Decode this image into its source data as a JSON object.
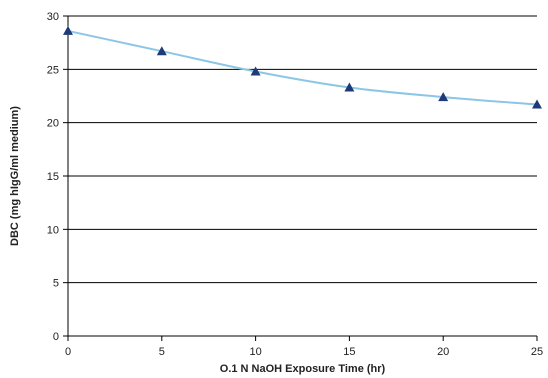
{
  "chart_data": {
    "type": "line",
    "title": "",
    "xlabel": "O.1 N NaOH Exposure Time (hr)",
    "ylabel": "DBC (mg hIgG/ml medium)",
    "x": [
      0,
      5,
      10,
      15,
      20,
      25
    ],
    "series": [
      {
        "values": [
          28.6,
          26.7,
          24.8,
          23.3,
          22.4,
          21.7
        ]
      }
    ],
    "xlim": [
      0,
      25
    ],
    "ylim": [
      0,
      30
    ],
    "xticks": [
      0,
      5,
      10,
      15,
      20,
      25
    ],
    "yticks": [
      0,
      5,
      10,
      15,
      20,
      25,
      30
    ],
    "grid": "horizontal",
    "legend": "none",
    "line_color": "#8cc6e6",
    "marker_color": "#1f3a78",
    "marker": "triangle"
  }
}
